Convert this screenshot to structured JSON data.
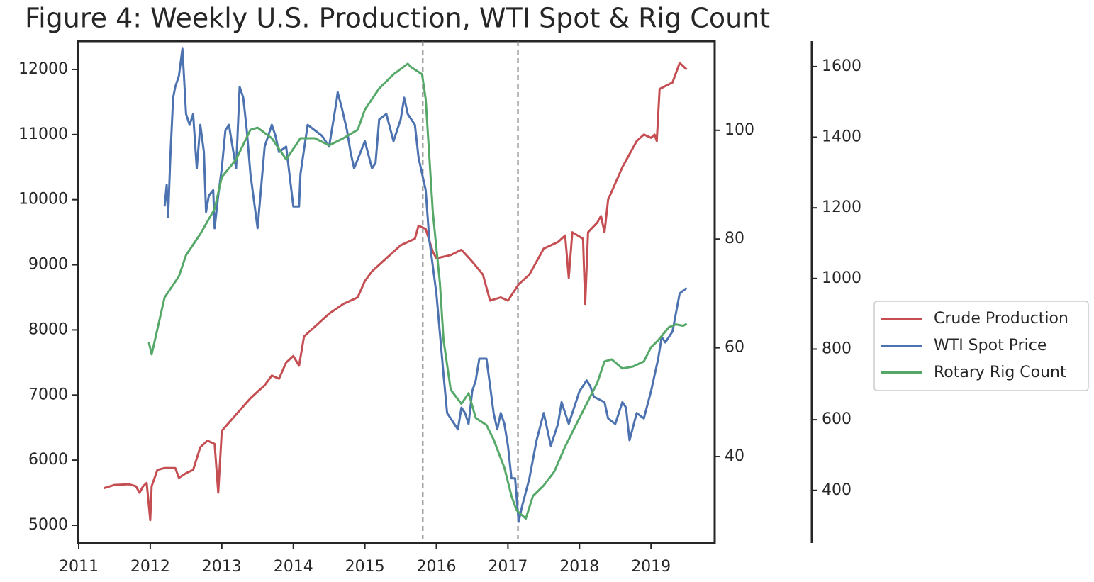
{
  "chart_data": {
    "type": "line",
    "title": "Figure 4: Weekly U.S. Production, WTI Spot & Rig Count",
    "xlim": [
      2010.99,
      2019.89
    ],
    "xticks": [
      2011,
      2012,
      2013,
      2014,
      2015,
      2016,
      2017,
      2018,
      2019
    ],
    "ylim": [
      4728,
      12435
    ],
    "yticks": [
      5000,
      6000,
      7000,
      8000,
      9000,
      10000,
      11000,
      12000
    ],
    "y2lim": [
      24.1,
      116.4
    ],
    "y2ticks": [
      40,
      60,
      80,
      100
    ],
    "y3lim": [
      251,
      1672
    ],
    "y3ticks": [
      400,
      600,
      800,
      1000,
      1200,
      1400,
      1600
    ],
    "vlines": [
      2015.81,
      2017.14
    ],
    "legend": "right",
    "series": [
      {
        "name": "Crude Production",
        "color": "#c44e52",
        "axis": "y",
        "x": [
          2011.35,
          2011.5,
          2011.7,
          2011.8,
          2011.85,
          2011.9,
          2011.95,
          2012.0,
          2012.02,
          2012.1,
          2012.2,
          2012.35,
          2012.4,
          2012.5,
          2012.6,
          2012.7,
          2012.8,
          2012.9,
          2012.95,
          2013.0,
          2013.2,
          2013.4,
          2013.6,
          2013.7,
          2013.8,
          2013.9,
          2014.0,
          2014.08,
          2014.15,
          2014.3,
          2014.4,
          2014.5,
          2014.7,
          2014.9,
          2015.0,
          2015.1,
          2015.3,
          2015.5,
          2015.7,
          2015.75,
          2015.85,
          2015.95,
          2016.0,
          2016.2,
          2016.35,
          2016.5,
          2016.65,
          2016.75,
          2016.9,
          2017.0,
          2017.15,
          2017.3,
          2017.5,
          2017.7,
          2017.8,
          2017.85,
          2017.9,
          2018.05,
          2018.08,
          2018.12,
          2018.25,
          2018.3,
          2018.35,
          2018.4,
          2018.6,
          2018.8,
          2018.9,
          2019.0,
          2019.05,
          2019.08,
          2019.12,
          2019.3,
          2019.4,
          2019.5
        ],
        "values": [
          5570,
          5620,
          5630,
          5600,
          5500,
          5600,
          5650,
          5080,
          5600,
          5850,
          5880,
          5880,
          5730,
          5800,
          5850,
          6200,
          6300,
          6250,
          5500,
          6450,
          6700,
          6950,
          7150,
          7300,
          7250,
          7500,
          7600,
          7450,
          7900,
          8050,
          8150,
          8250,
          8400,
          8500,
          8750,
          8900,
          9100,
          9300,
          9400,
          9600,
          9550,
          9200,
          9100,
          9150,
          9230,
          9050,
          8850,
          8450,
          8500,
          8450,
          8700,
          8850,
          9250,
          9350,
          9450,
          8800,
          9500,
          9400,
          8400,
          9500,
          9650,
          9750,
          9500,
          10000,
          10500,
          10900,
          11000,
          10950,
          11000,
          10900,
          11700,
          11800,
          12100,
          12000
        ]
      },
      {
        "name": "WTI Spot Price",
        "color": "#4c72b0",
        "axis": "y2",
        "x": [
          2012.2,
          2012.23,
          2012.25,
          2012.28,
          2012.32,
          2012.35,
          2012.4,
          2012.45,
          2012.5,
          2012.55,
          2012.6,
          2012.65,
          2012.7,
          2012.75,
          2012.78,
          2012.82,
          2012.88,
          2012.9,
          2012.95,
          2013.0,
          2013.05,
          2013.1,
          2013.15,
          2013.2,
          2013.25,
          2013.3,
          2013.35,
          2013.4,
          2013.5,
          2013.6,
          2013.7,
          2013.75,
          2013.8,
          2013.9,
          2014.0,
          2014.08,
          2014.1,
          2014.2,
          2014.3,
          2014.4,
          2014.5,
          2014.6,
          2014.62,
          2014.68,
          2014.75,
          2014.8,
          2014.85,
          2015.0,
          2015.1,
          2015.15,
          2015.2,
          2015.3,
          2015.4,
          2015.5,
          2015.55,
          2015.6,
          2015.7,
          2015.75,
          2015.85,
          2015.9,
          2016.0,
          2016.1,
          2016.15,
          2016.2,
          2016.3,
          2016.35,
          2016.4,
          2016.45,
          2016.5,
          2016.55,
          2016.6,
          2016.7,
          2016.75,
          2016.8,
          2016.85,
          2016.9,
          2016.95,
          2017.0,
          2017.05,
          2017.1,
          2017.15,
          2017.2,
          2017.3,
          2017.4,
          2017.5,
          2017.55,
          2017.6,
          2017.7,
          2017.75,
          2017.8,
          2017.85,
          2017.9,
          2018.0,
          2018.1,
          2018.15,
          2018.2,
          2018.35,
          2018.4,
          2018.5,
          2018.6,
          2018.65,
          2018.7,
          2018.8,
          2018.9,
          2019.0,
          2019.1,
          2019.15,
          2019.2,
          2019.3,
          2019.4,
          2019.5
        ],
        "values": [
          86,
          90,
          84,
          95,
          106,
          108,
          110,
          115,
          103,
          101,
          103,
          93,
          101,
          96,
          85,
          88,
          89,
          82,
          88,
          93,
          100,
          101,
          97,
          93,
          108,
          106,
          100,
          92,
          82,
          97,
          101,
          99,
          96,
          97,
          86,
          86,
          92,
          101,
          100,
          99,
          97,
          105,
          107,
          104,
          100,
          96,
          93,
          98,
          93,
          94,
          102,
          103,
          98,
          102,
          106,
          103,
          101,
          95,
          89,
          80,
          70,
          55,
          48,
          47,
          45,
          49,
          48,
          46,
          52,
          54,
          58,
          58,
          53,
          48,
          45,
          48,
          46,
          42,
          36,
          36,
          28,
          31,
          36,
          43,
          48,
          45,
          42,
          46,
          50,
          48,
          46,
          48,
          52,
          54,
          53,
          51,
          50,
          47,
          46,
          50,
          49,
          43,
          48,
          47,
          52,
          58,
          62,
          61,
          63,
          70,
          71
        ]
      },
      {
        "name": "Rotary Rig Count",
        "color": "#55a868",
        "axis": "y3",
        "x": [
          2011.98,
          2012.02,
          2012.2,
          2012.4,
          2012.5,
          2012.7,
          2012.9,
          2013.0,
          2013.2,
          2013.4,
          2013.5,
          2013.7,
          2013.9,
          2014.1,
          2014.3,
          2014.5,
          2014.7,
          2014.9,
          2015.0,
          2015.2,
          2015.4,
          2015.6,
          2015.65,
          2015.8,
          2015.85,
          2015.95,
          2016.05,
          2016.1,
          2016.2,
          2016.35,
          2016.45,
          2016.55,
          2016.7,
          2016.8,
          2016.95,
          2017.05,
          2017.12,
          2017.25,
          2017.35,
          2017.5,
          2017.65,
          2017.8,
          2017.95,
          2018.1,
          2018.25,
          2018.35,
          2018.45,
          2018.6,
          2018.75,
          2018.9,
          2019.0,
          2019.1,
          2019.25,
          2019.35,
          2019.45,
          2019.5
        ],
        "values": [
          819,
          785,
          946,
          1006,
          1066,
          1126,
          1197,
          1287,
          1337,
          1421,
          1427,
          1397,
          1337,
          1397,
          1397,
          1377,
          1397,
          1421,
          1478,
          1538,
          1578,
          1608,
          1598,
          1578,
          1508,
          1187,
          986,
          825,
          685,
          645,
          675,
          605,
          585,
          544,
          464,
          384,
          344,
          320,
          384,
          414,
          454,
          524,
          585,
          645,
          705,
          765,
          771,
          745,
          751,
          765,
          805,
          825,
          862,
          870,
          866,
          872
        ]
      }
    ]
  }
}
